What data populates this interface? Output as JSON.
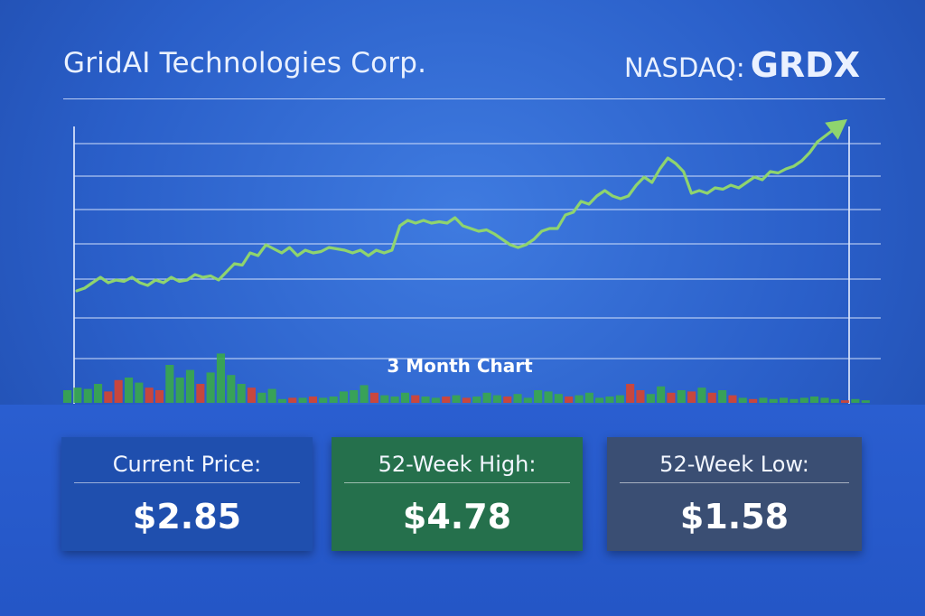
{
  "header": {
    "company": "GridAI Technologies Corp.",
    "exchange": "NASDAQ:",
    "symbol": "GRDX"
  },
  "chart_data": {
    "type": "line",
    "title": "3 Month Chart",
    "xlabel": "",
    "ylabel": "",
    "grid": true,
    "line_color": "#8fd46e",
    "series": [
      {
        "values": [
          1.0,
          1.1,
          1.3,
          1.5,
          1.3,
          1.4,
          1.35,
          1.5,
          1.3,
          1.2,
          1.4,
          1.3,
          1.5,
          1.35,
          1.4,
          1.6,
          1.5,
          1.55,
          1.4,
          1.7,
          2.0,
          1.95,
          2.4,
          2.3,
          2.7,
          2.55,
          2.4,
          2.6,
          2.3,
          2.5,
          2.4,
          2.45,
          2.6,
          2.55,
          2.5,
          2.4,
          2.5,
          2.3,
          2.5,
          2.4,
          2.5,
          3.4,
          3.6,
          3.5,
          3.6,
          3.5,
          3.55,
          3.5,
          3.7,
          3.4,
          3.3,
          3.2,
          3.25,
          3.1,
          2.9,
          2.7,
          2.6,
          2.7,
          2.9,
          3.2,
          3.3,
          3.3,
          3.8,
          3.9,
          4.3,
          4.2,
          4.5,
          4.7,
          4.5,
          4.4,
          4.5,
          4.9,
          5.2,
          5.0,
          5.5,
          5.9,
          5.7,
          5.4,
          4.6,
          4.7,
          4.6,
          4.8,
          4.75,
          4.9,
          4.8,
          5.0,
          5.2,
          5.1,
          5.4,
          5.35,
          5.5,
          5.6,
          5.8,
          6.1,
          6.5
        ]
      }
    ],
    "volume": [
      {
        "v": 1.0,
        "up": true
      },
      {
        "v": 1.2,
        "up": true
      },
      {
        "v": 1.1,
        "up": true
      },
      {
        "v": 1.5,
        "up": true
      },
      {
        "v": 0.9,
        "up": false
      },
      {
        "v": 1.8,
        "up": false
      },
      {
        "v": 2.0,
        "up": true
      },
      {
        "v": 1.6,
        "up": true
      },
      {
        "v": 1.2,
        "up": false
      },
      {
        "v": 1.0,
        "up": false
      },
      {
        "v": 3.0,
        "up": true
      },
      {
        "v": 2.0,
        "up": true
      },
      {
        "v": 2.6,
        "up": true
      },
      {
        "v": 1.5,
        "up": false
      },
      {
        "v": 2.4,
        "up": true
      },
      {
        "v": 3.9,
        "up": true
      },
      {
        "v": 2.2,
        "up": true
      },
      {
        "v": 1.5,
        "up": true
      },
      {
        "v": 1.2,
        "up": false
      },
      {
        "v": 0.8,
        "up": true
      },
      {
        "v": 1.1,
        "up": true
      },
      {
        "v": 0.3,
        "up": true
      },
      {
        "v": 0.4,
        "up": false
      },
      {
        "v": 0.4,
        "up": true
      },
      {
        "v": 0.5,
        "up": false
      },
      {
        "v": 0.4,
        "up": true
      },
      {
        "v": 0.5,
        "up": true
      },
      {
        "v": 0.9,
        "up": true
      },
      {
        "v": 1.0,
        "up": true
      },
      {
        "v": 1.4,
        "up": true
      },
      {
        "v": 0.8,
        "up": false
      },
      {
        "v": 0.6,
        "up": true
      },
      {
        "v": 0.5,
        "up": true
      },
      {
        "v": 0.8,
        "up": true
      },
      {
        "v": 0.6,
        "up": false
      },
      {
        "v": 0.5,
        "up": true
      },
      {
        "v": 0.4,
        "up": true
      },
      {
        "v": 0.5,
        "up": false
      },
      {
        "v": 0.6,
        "up": true
      },
      {
        "v": 0.4,
        "up": false
      },
      {
        "v": 0.5,
        "up": true
      },
      {
        "v": 0.8,
        "up": true
      },
      {
        "v": 0.6,
        "up": true
      },
      {
        "v": 0.5,
        "up": false
      },
      {
        "v": 0.7,
        "up": true
      },
      {
        "v": 0.4,
        "up": true
      },
      {
        "v": 1.0,
        "up": true
      },
      {
        "v": 0.9,
        "up": true
      },
      {
        "v": 0.7,
        "up": true
      },
      {
        "v": 0.5,
        "up": false
      },
      {
        "v": 0.6,
        "up": true
      },
      {
        "v": 0.8,
        "up": true
      },
      {
        "v": 0.4,
        "up": true
      },
      {
        "v": 0.5,
        "up": true
      },
      {
        "v": 0.6,
        "up": true
      },
      {
        "v": 1.5,
        "up": false
      },
      {
        "v": 1.0,
        "up": false
      },
      {
        "v": 0.7,
        "up": true
      },
      {
        "v": 1.3,
        "up": true
      },
      {
        "v": 0.8,
        "up": false
      },
      {
        "v": 1.0,
        "up": true
      },
      {
        "v": 0.9,
        "up": false
      },
      {
        "v": 1.2,
        "up": true
      },
      {
        "v": 0.8,
        "up": false
      },
      {
        "v": 1.0,
        "up": true
      },
      {
        "v": 0.6,
        "up": false
      },
      {
        "v": 0.4,
        "up": true
      },
      {
        "v": 0.3,
        "up": false
      },
      {
        "v": 0.4,
        "up": true
      },
      {
        "v": 0.3,
        "up": true
      },
      {
        "v": 0.4,
        "up": true
      },
      {
        "v": 0.3,
        "up": true
      },
      {
        "v": 0.4,
        "up": true
      },
      {
        "v": 0.5,
        "up": true
      },
      {
        "v": 0.4,
        "up": true
      },
      {
        "v": 0.3,
        "up": true
      },
      {
        "v": 0.2,
        "up": false
      },
      {
        "v": 0.3,
        "up": true
      },
      {
        "v": 0.2,
        "up": true
      }
    ],
    "up_color": "#3aa84a",
    "down_color": "#d8442f"
  },
  "stats": {
    "current": {
      "label": "Current Price:",
      "value": "$2.85"
    },
    "high": {
      "label": "52-Week High:",
      "value": "$4.78"
    },
    "low": {
      "label": "52-Week Low:",
      "value": "$1.58"
    }
  }
}
